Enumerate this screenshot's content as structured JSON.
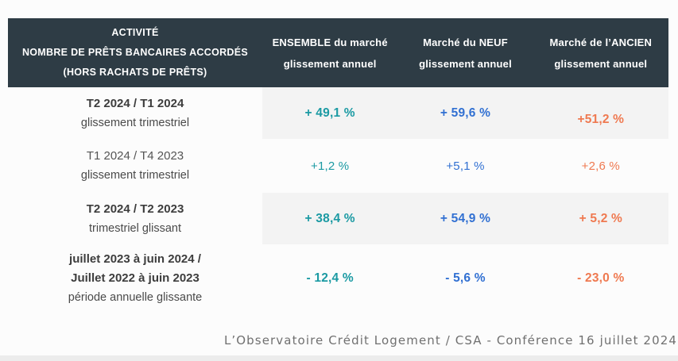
{
  "table": {
    "header": {
      "activity_lines": [
        "ACTIVITÉ",
        "NOMBRE DE PRÊTS BANCAIRES ACCORDÉS",
        "(HORS RACHATS DE PRÊTS)"
      ],
      "cols": [
        {
          "line1": "ENSEMBLE du marché",
          "line2": "glissement annuel"
        },
        {
          "line1": "Marché du NEUF",
          "line2": "glissement annuel"
        },
        {
          "line1": "Marché de l’ANCIEN",
          "line2": "glissement annuel"
        }
      ]
    },
    "rows": [
      {
        "label_lines": [
          "T2 2024 / T1 2024"
        ],
        "sublabel": "glissement trimestriel",
        "values": [
          "+ 49,1 %",
          "+ 59,6 %",
          "+51,2 %"
        ]
      },
      {
        "label_lines": [
          "T1 2024 / T4 2023"
        ],
        "sublabel": "glissement trimestriel",
        "values": [
          "+1,2 %",
          "+5,1 %",
          "+2,6 %"
        ]
      },
      {
        "label_lines": [
          "T2 2024 / T2 2023"
        ],
        "sublabel": "trimestriel glissant",
        "values": [
          "+ 38,4 %",
          "+ 54,9 %",
          "+ 5,2 %"
        ]
      },
      {
        "label_lines": [
          "juillet 2023 à juin 2024 /",
          "Juillet 2022 à juin 2023"
        ],
        "sublabel": "période annuelle glissante",
        "values": [
          "- 12,4 %",
          "- 5,6 %",
          "- 23,0 %"
        ]
      }
    ]
  },
  "footer": {
    "text": "L’Observatoire Crédit Logement / CSA - Conférence 16 juillet 2024"
  },
  "colors": {
    "header_bg": "#2e3c45",
    "header_text": "#ffffff",
    "ensemble": "#1b9aa3",
    "neuf": "#3170d2",
    "ancien": "#ef7950",
    "shaded_row_bg": "#f3f3f3",
    "footer_text": "#707070"
  },
  "chart_data": {
    "type": "table",
    "title": "ACTIVITÉ — NOMBRE DE PRÊTS BANCAIRES ACCORDÉS (HORS RACHATS DE PRÊTS)",
    "columns": [
      "ENSEMBLE du marché glissement annuel",
      "Marché du NEUF glissement annuel",
      "Marché de l’ANCIEN glissement annuel"
    ],
    "rows": [
      {
        "period": "T2 2024 / T1 2024 — glissement trimestriel",
        "ensemble_pct": 49.1,
        "neuf_pct": 59.6,
        "ancien_pct": 51.2
      },
      {
        "period": "T1 2024 / T4 2023 — glissement trimestriel",
        "ensemble_pct": 1.2,
        "neuf_pct": 5.1,
        "ancien_pct": 2.6
      },
      {
        "period": "T2 2024 / T2 2023 — trimestriel glissant",
        "ensemble_pct": 38.4,
        "neuf_pct": 54.9,
        "ancien_pct": 5.2
      },
      {
        "period": "juillet 2023 à juin 2024 / Juillet 2022 à juin 2023 — période annuelle glissante",
        "ensemble_pct": -12.4,
        "neuf_pct": -5.6,
        "ancien_pct": -23.0
      }
    ]
  }
}
